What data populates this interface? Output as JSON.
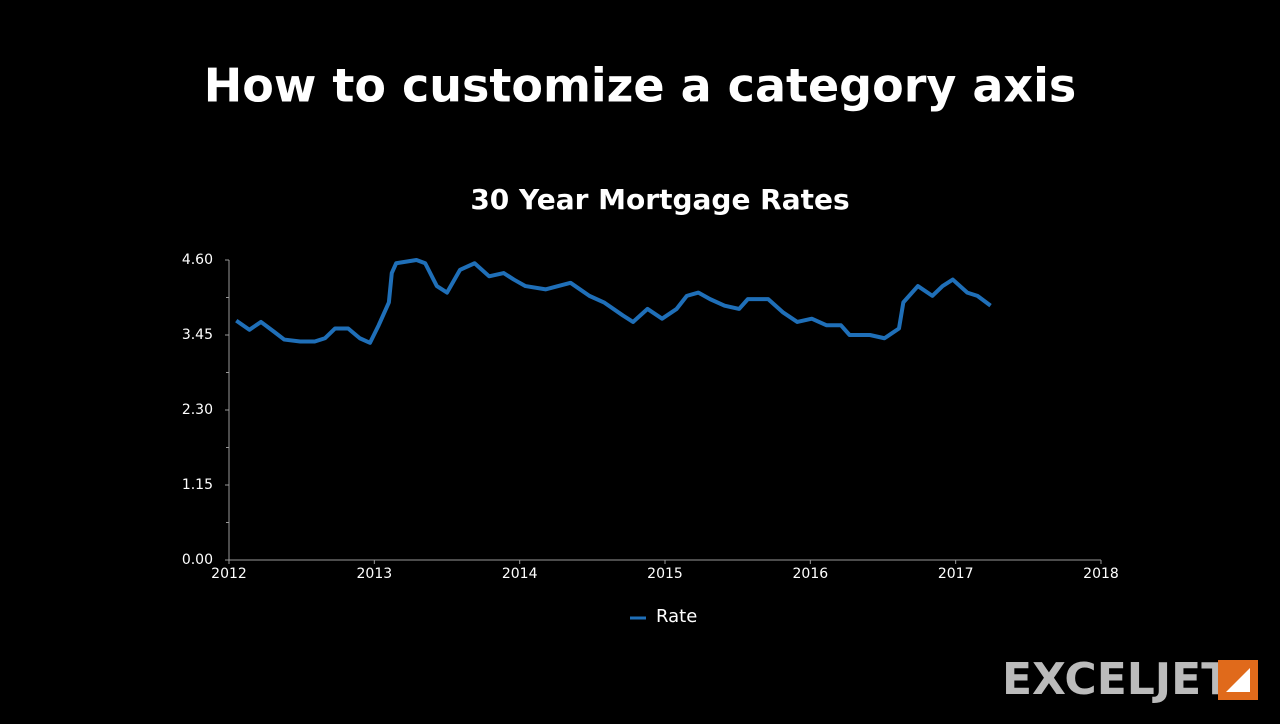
{
  "slide": {
    "title": "How to customize a category axis",
    "logo": "EXCELJET"
  },
  "chart_data": {
    "type": "line",
    "title": "30 Year Mortgage Rates",
    "x": [
      2012.05,
      2012.14,
      2012.22,
      2012.31,
      2012.38,
      2012.49,
      2012.59,
      2012.66,
      2012.73,
      2012.82,
      2012.9,
      2012.97,
      2013.03,
      2013.1,
      2013.12,
      2013.15,
      2013.29,
      2013.35,
      2013.43,
      2013.5,
      2013.59,
      2013.69,
      2013.79,
      2013.89,
      2013.96,
      2014.04,
      2014.18,
      2014.35,
      2014.48,
      2014.58,
      2014.71,
      2014.78,
      2014.88,
      2014.98,
      2015.08,
      2015.15,
      2015.23,
      2015.31,
      2015.41,
      2015.51,
      2015.57,
      2015.71,
      2015.81,
      2015.91,
      2016.01,
      2016.11,
      2016.21,
      2016.27,
      2016.41,
      2016.51,
      2016.61,
      2016.64,
      2016.74,
      2016.84,
      2016.91,
      2016.98,
      2017.08,
      2017.15,
      2017.24
    ],
    "series": [
      {
        "name": "Rate",
        "color": "#1f6fb8",
        "values": [
          3.67,
          3.53,
          3.65,
          3.5,
          3.38,
          3.35,
          3.35,
          3.4,
          3.55,
          3.55,
          3.4,
          3.33,
          3.6,
          3.95,
          4.4,
          4.55,
          4.6,
          4.55,
          4.2,
          4.1,
          4.45,
          4.55,
          4.35,
          4.4,
          4.3,
          4.2,
          4.15,
          4.25,
          4.05,
          3.95,
          3.75,
          3.65,
          3.85,
          3.7,
          3.85,
          4.05,
          4.1,
          4.0,
          3.9,
          3.85,
          4.0,
          4.0,
          3.8,
          3.65,
          3.7,
          3.6,
          3.6,
          3.45,
          3.45,
          3.4,
          3.55,
          3.95,
          4.2,
          4.05,
          4.2,
          4.3,
          4.1,
          4.05,
          3.9
        ]
      }
    ],
    "xlim": [
      2012,
      2018
    ],
    "xticks": [
      2012,
      2013,
      2014,
      2015,
      2016,
      2017,
      2018
    ],
    "ylim": [
      0,
      4.6
    ],
    "yticks": [
      {
        "value": 0,
        "label": "0.00"
      },
      1.15,
      {
        "value": 2.3,
        "label": "2.30"
      },
      3.45,
      {
        "value": 4.6,
        "label": "4.60"
      }
    ],
    "legend": "bottom"
  }
}
